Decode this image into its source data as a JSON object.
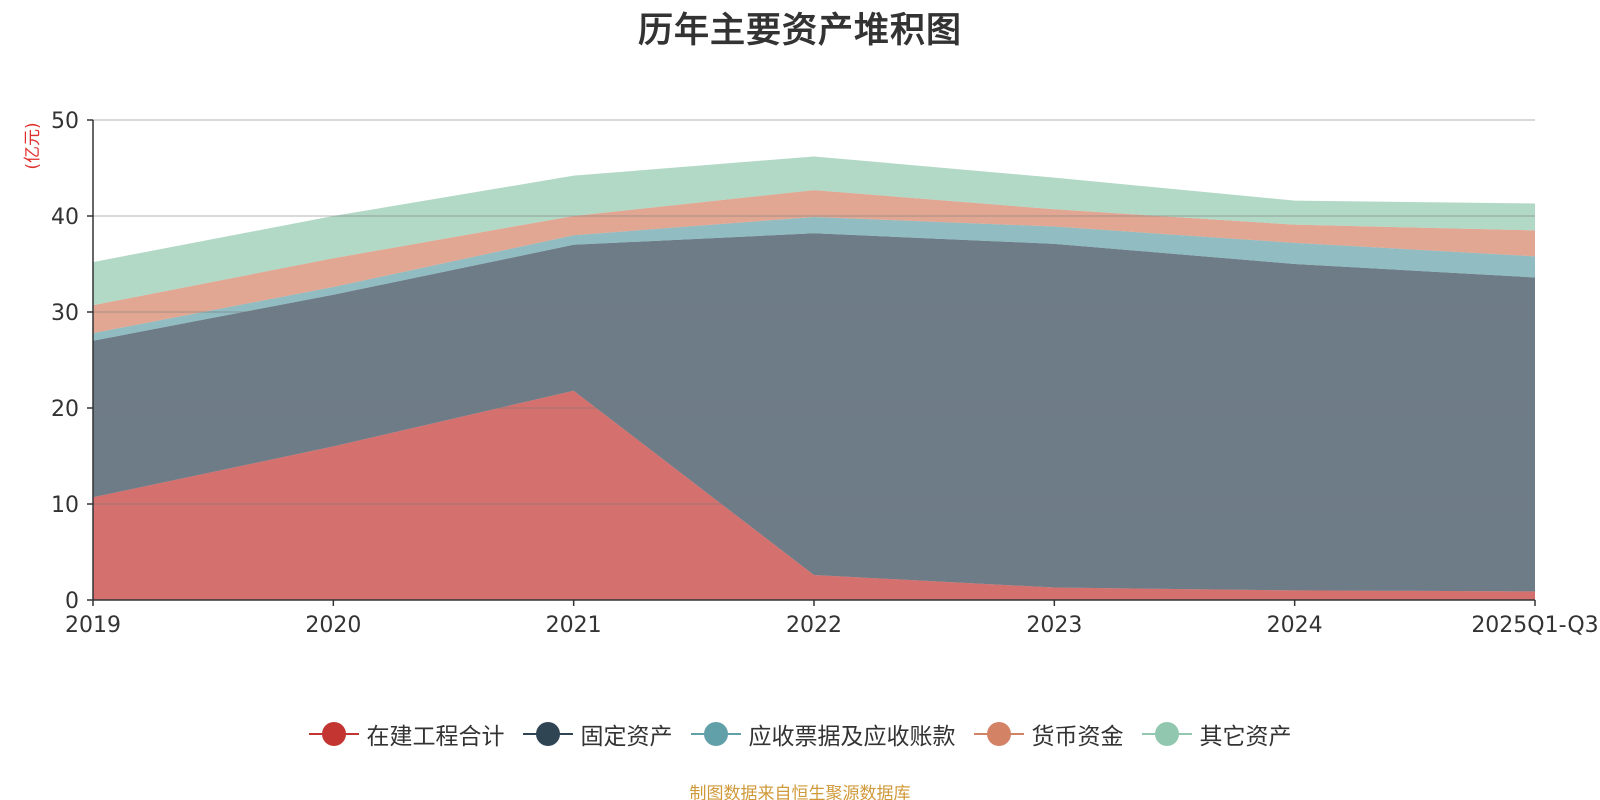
{
  "chart_data": {
    "type": "area",
    "stacked": true,
    "title": "历年主要资产堆积图",
    "ylabel": "(亿元)",
    "xlabel": "",
    "categories": [
      "2019",
      "2020",
      "2021",
      "2022",
      "2023",
      "2024",
      "2025Q1-Q3"
    ],
    "ylim": [
      0,
      50
    ],
    "yticks": [
      0,
      10,
      20,
      30,
      40,
      50
    ],
    "grid": true,
    "legend_position": "bottom",
    "series": [
      {
        "name": "在建工程合计",
        "color": "#c23531",
        "values": [
          10.7,
          16.0,
          21.8,
          2.6,
          1.3,
          1.0,
          0.9
        ]
      },
      {
        "name": "固定资产",
        "color": "#2f4554",
        "values": [
          16.3,
          15.8,
          15.2,
          35.6,
          35.8,
          34.0,
          32.7
        ]
      },
      {
        "name": "应收票据及应收账款",
        "color": "#61a0a8",
        "values": [
          0.8,
          0.8,
          1.0,
          1.7,
          1.8,
          2.2,
          2.2
        ]
      },
      {
        "name": "货币资金",
        "color": "#d48265",
        "values": [
          2.9,
          3.0,
          2.0,
          2.8,
          1.8,
          1.9,
          2.7
        ]
      },
      {
        "name": "其它资产",
        "color": "#91c7ae",
        "values": [
          4.5,
          4.4,
          4.2,
          3.5,
          3.3,
          2.5,
          2.8
        ]
      }
    ],
    "source_note": "制图数据来自恒生聚源数据库"
  }
}
